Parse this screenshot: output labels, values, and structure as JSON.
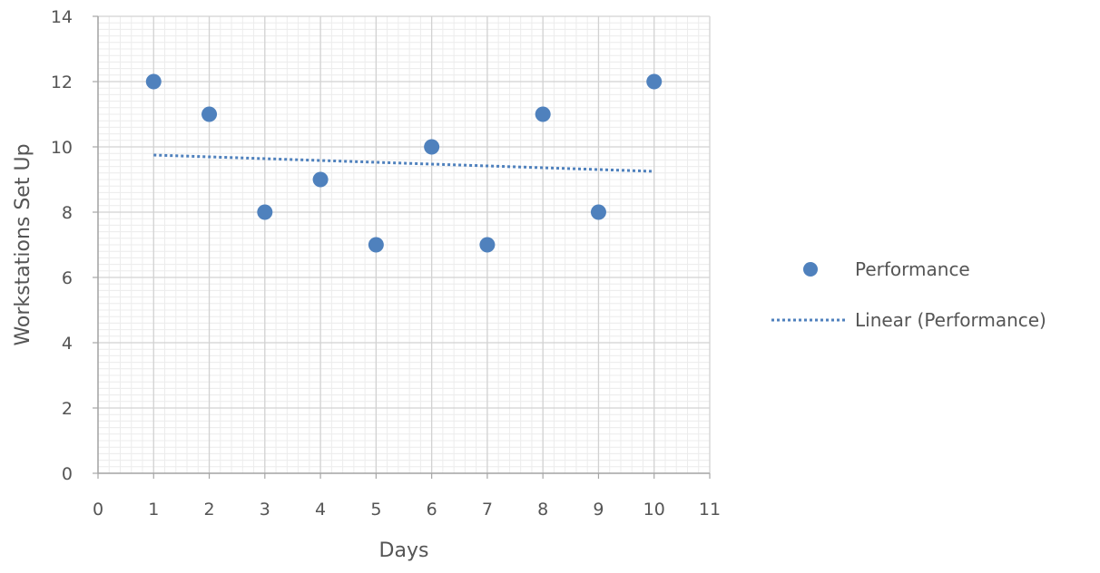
{
  "chart_data": {
    "type": "scatter",
    "title": "",
    "xlabel": "Days",
    "ylabel": "Workstations Set Up",
    "xlim": [
      0,
      11
    ],
    "ylim": [
      0,
      14
    ],
    "xticks": [
      0,
      1,
      2,
      3,
      4,
      5,
      6,
      7,
      8,
      9,
      10,
      11
    ],
    "yticks": [
      0,
      2,
      4,
      6,
      8,
      10,
      12,
      14
    ],
    "grid": true,
    "legend_position": "right",
    "series": [
      {
        "name": "Performance",
        "marker_color": "#4f81bd",
        "x": [
          1,
          2,
          3,
          4,
          5,
          6,
          7,
          8,
          9,
          10
        ],
        "y": [
          12,
          11,
          8,
          9,
          7,
          10,
          7,
          11,
          8,
          12
        ]
      }
    ],
    "trendline": {
      "name": "Linear (Performance)",
      "kind": "linear",
      "color": "#4f81bd",
      "style": "dotted",
      "x": [
        1,
        10
      ],
      "y": [
        9.75,
        9.25
      ]
    }
  }
}
